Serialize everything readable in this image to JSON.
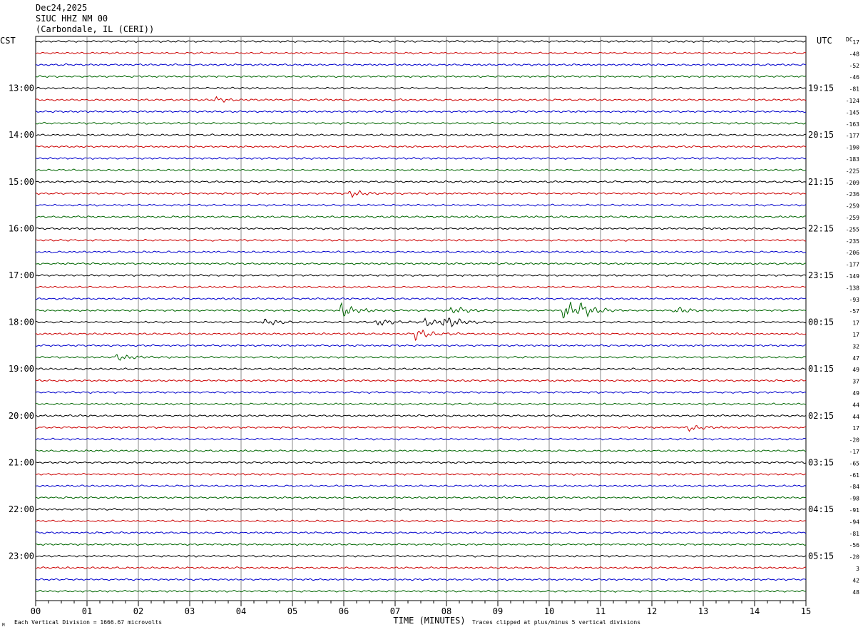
{
  "header": {
    "date": "Dec24,2025",
    "station": "SIUC HHZ NM 00",
    "location": "(Carbondale, IL (CERI))"
  },
  "chart_data": {
    "type": "line",
    "title": "",
    "left_axis_label": "CST",
    "right_axis_label": "UTC",
    "dc_label": "DC",
    "xlabel": "TIME (MINUTES)",
    "xlim": [
      0,
      15
    ],
    "x_tick_labels": [
      "00",
      "01",
      "02",
      "03",
      "04",
      "05",
      "06",
      "07",
      "08",
      "09",
      "10",
      "11",
      "12",
      "13",
      "14",
      "15"
    ],
    "trace_count": 48,
    "trace_colors": [
      "#000000",
      "#cc0000",
      "#0000cc",
      "#006600"
    ],
    "cst_hour_labels": [
      "13:00",
      "14:00",
      "15:00",
      "16:00",
      "17:00",
      "18:00",
      "19:00",
      "20:00",
      "21:00",
      "22:00",
      "23:00"
    ],
    "utc_hour_labels": [
      "19:15",
      "20:15",
      "21:15",
      "22:15",
      "23:15",
      "00:15",
      "01:15",
      "02:15",
      "03:15",
      "04:15",
      "05:15"
    ],
    "dc_offsets": [
      "17",
      "-48",
      "-52",
      "-46",
      "-81",
      "-124",
      "-145",
      "-163",
      "-177",
      "-190",
      "-183",
      "-225",
      "-209",
      "-236",
      "-259",
      "-259",
      "-255",
      "-235",
      "-206",
      "-177",
      "-149",
      "-138",
      "-93",
      "-57",
      "17",
      "17",
      "32",
      "47",
      "49",
      "37",
      "49",
      "44",
      "44",
      "17",
      "-20",
      "-17",
      "-65",
      "-61",
      "-84",
      "-98",
      "-91",
      "-94",
      "-81",
      "-56",
      "-20",
      "3",
      "42",
      "48"
    ],
    "events": [
      {
        "trace": 23,
        "minute": 5.95,
        "amplitude": 9
      },
      {
        "trace": 23,
        "minute": 8.1,
        "amplitude": 5
      },
      {
        "trace": 23,
        "minute": 10.28,
        "amplitude": 13
      },
      {
        "trace": 23,
        "minute": 10.6,
        "amplitude": 7
      },
      {
        "trace": 23,
        "minute": 12.45,
        "amplitude": 4
      },
      {
        "trace": 24,
        "minute": 4.45,
        "amplitude": 4
      },
      {
        "trace": 24,
        "minute": 6.65,
        "amplitude": 4
      },
      {
        "trace": 24,
        "minute": 7.6,
        "amplitude": 5
      },
      {
        "trace": 24,
        "minute": 7.95,
        "amplitude": 7
      },
      {
        "trace": 25,
        "minute": 7.4,
        "amplitude": 6
      },
      {
        "trace": 13,
        "minute": 6.1,
        "amplitude": 4
      },
      {
        "trace": 27,
        "minute": 1.55,
        "amplitude": 4
      },
      {
        "trace": 33,
        "minute": 12.7,
        "amplitude": 4
      },
      {
        "trace": 5,
        "minute": 3.5,
        "amplitude": 3
      }
    ]
  },
  "footer": {
    "scale_note": "Each Vertical Division = 1666.67 microvolts",
    "clip_note": "Traces clipped at plus/minus 5 vertical divisions",
    "corner_mark": "M"
  }
}
